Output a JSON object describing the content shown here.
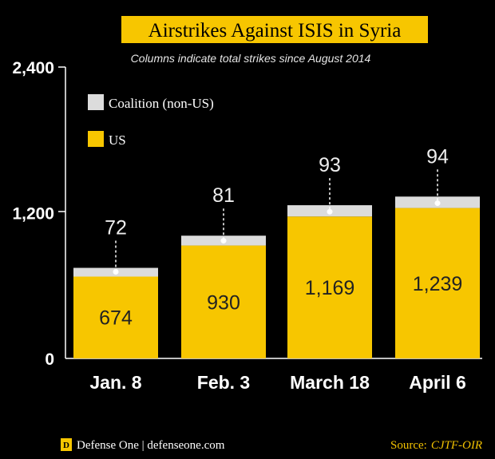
{
  "colors": {
    "background": "#000000",
    "us": "#f7c600",
    "coalition": "#dcdcdc",
    "title_bg": "#f7c600",
    "source": "#f2c200"
  },
  "footer": {
    "logo_letter": "D",
    "brand": "Defense One | defenseone.com",
    "source_label": "Source:",
    "source_value": "CJTF-OIR"
  },
  "chart_data": {
    "type": "bar",
    "stacked": true,
    "title": "Airstrikes Against ISIS in Syria",
    "subtitle": "Columns indicate total strikes since August 2014",
    "categories": [
      "Jan. 8",
      "Feb. 3",
      "March 18",
      "April 6"
    ],
    "series": [
      {
        "name": "US",
        "values": [
          674,
          930,
          1169,
          1239
        ],
        "color": "#f7c600"
      },
      {
        "name": "Coalition (non-US)",
        "values": [
          72,
          81,
          93,
          94
        ],
        "color": "#dcdcdc"
      }
    ],
    "value_labels": {
      "US": [
        "674",
        "930",
        "1,169",
        "1,239"
      ],
      "Coalition (non-US)": [
        "72",
        "81",
        "93",
        "94"
      ]
    },
    "ylim": [
      0,
      2400
    ],
    "yticks": [
      0,
      1200,
      2400
    ],
    "ytick_labels": [
      "0",
      "1,200",
      "2,400"
    ],
    "legend_position": "top-left",
    "grid": false
  }
}
